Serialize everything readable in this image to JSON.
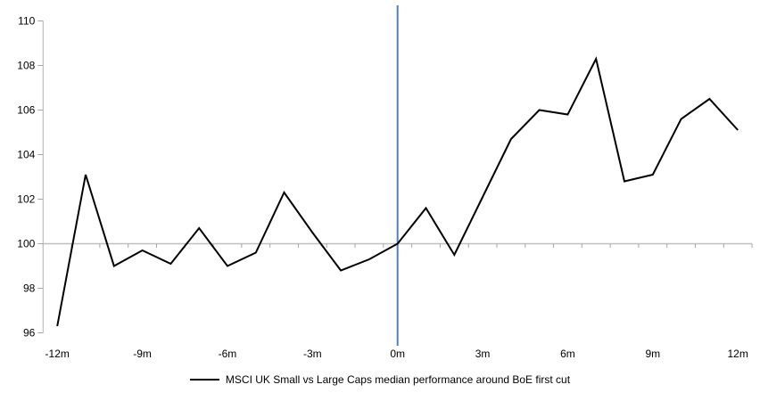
{
  "chart_data": {
    "type": "line",
    "title": "",
    "x_months": [
      -12,
      -11,
      -10,
      -9,
      -8,
      -7,
      -6,
      -5,
      -4,
      -3,
      -2,
      -1,
      0,
      1,
      2,
      3,
      4,
      5,
      6,
      7,
      8,
      9,
      10,
      11,
      12
    ],
    "series": [
      {
        "name": "MSCI UK Small vs Large Caps median performance around BoE first cut",
        "color": "#000000",
        "values": [
          96.3,
          103.1,
          99.0,
          99.7,
          99.1,
          100.7,
          99.0,
          99.6,
          102.3,
          100.5,
          98.8,
          99.3,
          100.0,
          101.6,
          99.5,
          102.1,
          104.7,
          106.0,
          105.8,
          108.3,
          102.8,
          103.1,
          105.6,
          106.5,
          105.1
        ]
      }
    ],
    "x_axis": {
      "tick_months": [
        -12,
        -9,
        -6,
        -3,
        0,
        3,
        6,
        9,
        12
      ],
      "tick_labels": [
        "-12m",
        "-9m",
        "-6m",
        "-3m",
        "0m",
        "3m",
        "6m",
        "9m",
        "12m"
      ],
      "range_months": [
        -12.5,
        12.5
      ]
    },
    "y_axis": {
      "min": 96,
      "max": 110,
      "tick_step": 2,
      "tick_values": [
        96,
        98,
        100,
        102,
        104,
        106,
        108,
        110
      ],
      "tick_labels": [
        "96",
        "98",
        "100",
        "102",
        "104",
        "106",
        "108",
        "110"
      ]
    },
    "baseline_value": 100,
    "event_line": {
      "x_month": 0,
      "color": "#4F81BD"
    },
    "legend_position": "bottom",
    "colors": {
      "series_line": "#000000",
      "axis_line": "#BFBFBF",
      "axis_tick": "#A6A6A6",
      "text": "#000000"
    }
  }
}
